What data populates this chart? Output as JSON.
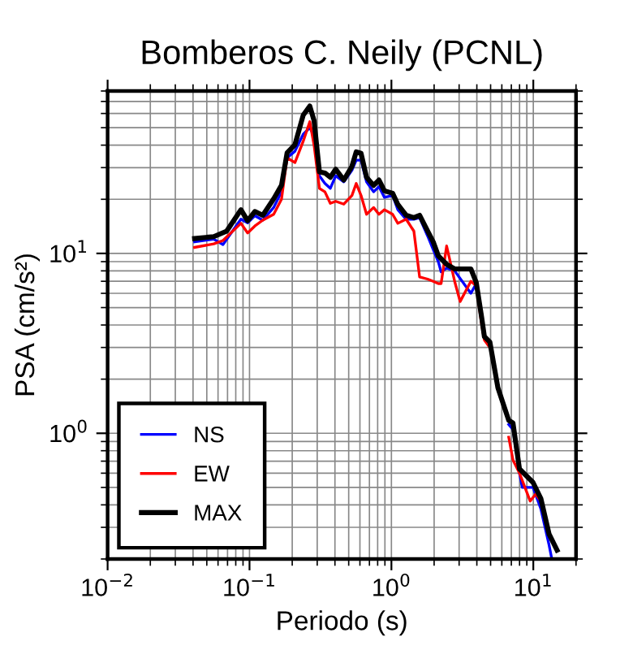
{
  "chart_data": {
    "type": "line",
    "title": "Bomberos C. Neily (PCNL)",
    "xlabel": "Periodo (s)",
    "ylabel": "PSA (cm/s²)",
    "log": "xy",
    "grid": true,
    "legend": "bottom left",
    "marker": "none",
    "line_style": "solid",
    "xlim": [
      0.01,
      20
    ],
    "ylim": [
      0.2,
      80
    ],
    "xticks": [
      {
        "value": 0.01,
        "label": "10$^{−2}$"
      },
      {
        "value": 0.1,
        "label": "10$^{−1}$"
      },
      {
        "value": 1,
        "label": "10$^{0}$"
      },
      {
        "value": 10,
        "label": "10$^{1}$"
      }
    ],
    "yticks": [
      {
        "value": 1,
        "label": "10$^{0}$"
      },
      {
        "value": 10,
        "label": "10$^{1}$"
      }
    ],
    "series": [
      {
        "name": "NS",
        "color": "#0000ff",
        "x": [
          0.041,
          0.056,
          0.065,
          0.087,
          0.097,
          0.109,
          0.124,
          0.148,
          0.168,
          0.184,
          0.209,
          0.239,
          0.266,
          0.285,
          0.311,
          0.34,
          0.371,
          0.405,
          0.462,
          0.527,
          0.565,
          0.611,
          0.668,
          0.749,
          0.817,
          0.893,
          1.02,
          1.11,
          1.27,
          1.44,
          1.58,
          1.8,
          1.97,
          2.14,
          2.24,
          2.45,
          2.79,
          3.63,
          3.96,
          4.33,
          4.52,
          4.94,
          5.63,
          6.71,
          7.19,
          7.99,
          8.36,
          9.95,
          11.3,
          12.9,
          13.5
        ],
        "values": [
          11.6,
          12.0,
          11.2,
          15.5,
          14.8,
          16.2,
          15.3,
          18,
          22,
          34,
          37,
          46,
          50,
          45,
          27,
          24.5,
          23,
          27,
          25,
          29,
          33,
          33,
          25,
          22,
          23.5,
          20.5,
          21,
          17.5,
          15.5,
          15.5,
          15.8,
          12.5,
          10.5,
          9,
          7.9,
          8.3,
          8,
          6.0,
          6.8,
          null,
          null,
          null,
          null,
          1.12,
          1.05,
          0.6,
          0.5,
          0.5,
          0.38,
          0.24,
          0.2
        ]
      },
      {
        "name": "EW",
        "color": "#ff0000",
        "x": [
          0.041,
          0.056,
          0.065,
          0.087,
          0.097,
          0.109,
          0.124,
          0.148,
          0.168,
          0.184,
          0.209,
          0.239,
          0.266,
          0.285,
          0.311,
          0.34,
          0.371,
          0.405,
          0.462,
          0.527,
          0.565,
          0.611,
          0.668,
          0.749,
          0.817,
          0.893,
          1.02,
          1.11,
          1.27,
          1.44,
          1.58,
          1.8,
          1.97,
          2.14,
          2.24,
          2.45,
          2.79,
          3.05,
          3.63,
          3.96,
          4.33,
          4.52,
          4.94,
          5.63,
          6.71,
          7.19,
          7.99,
          9.5,
          10.4,
          11.3
        ],
        "values": [
          10.8,
          11.3,
          11.8,
          14.7,
          13,
          14.2,
          15.3,
          16.5,
          20,
          34,
          32,
          42,
          54,
          40,
          23,
          22,
          19,
          19.5,
          18.8,
          21,
          24.5,
          21,
          16.5,
          18,
          16.5,
          17.5,
          16.5,
          14.7,
          15.5,
          13.3,
          7.4,
          7.2,
          7.0,
          6.8,
          6.8,
          11,
          7.0,
          5.4,
          7.0,
          6.6,
          4.0,
          3.3,
          3.0,
          null,
          0.95,
          0.71,
          0.6,
          0.42,
          0.46,
          0.42
        ]
      },
      {
        "name": "MAX",
        "color": "#000000",
        "x": [
          0.041,
          0.056,
          0.069,
          0.087,
          0.097,
          0.109,
          0.124,
          0.148,
          0.168,
          0.184,
          0.209,
          0.239,
          0.266,
          0.285,
          0.311,
          0.34,
          0.371,
          0.405,
          0.462,
          0.527,
          0.565,
          0.611,
          0.668,
          0.749,
          0.817,
          0.893,
          1.02,
          1.11,
          1.27,
          1.44,
          1.58,
          1.8,
          1.97,
          2.14,
          2.45,
          2.79,
          3.63,
          3.96,
          4.33,
          4.52,
          4.94,
          5.63,
          6.71,
          7.19,
          7.99,
          9.95,
          11.3,
          12.9,
          14.7
        ],
        "values": [
          12.1,
          12.4,
          13.3,
          17.5,
          15.2,
          17.1,
          16.3,
          20.1,
          23.9,
          36.2,
          40.2,
          58.7,
          66,
          54.8,
          28.4,
          28,
          26.5,
          29.4,
          25.6,
          30.5,
          36.7,
          36,
          26.5,
          23.9,
          25.6,
          22.3,
          21.6,
          18.7,
          16.3,
          15.8,
          16.3,
          13.3,
          11.6,
          9.7,
          8.7,
          8.2,
          8.2,
          6.9,
          4.38,
          3.45,
          3.22,
          1.79,
          1.18,
          1.14,
          0.634,
          0.533,
          0.434,
          0.276,
          0.224
        ]
      }
    ]
  }
}
